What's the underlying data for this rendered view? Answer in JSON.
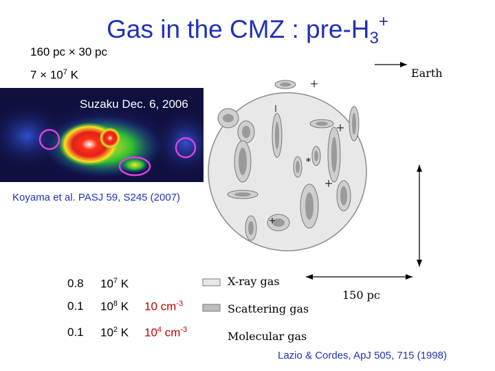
{
  "title": {
    "main": "Gas in the CMZ : pre-H",
    "sub": "3",
    "sup": "+"
  },
  "specs": [
    {
      "text": "160 pc × 30 pc"
    },
    {
      "base": "7 × 10",
      "exp": "7",
      "unit": " K"
    }
  ],
  "xray_image": {
    "label": "Suzaku  Dec. 6, 2006"
  },
  "credits": {
    "left": "Koyama et al. PASJ 59, S245 (2007)",
    "bottom": "Lazio & Cordes, ApJ 505, 715 (1998)"
  },
  "diagram": {
    "earth_label": "Earth",
    "scale_label": "150 pc",
    "legend": [
      "X-ray gas",
      "Scattering gas",
      "Molecular gas"
    ]
  },
  "table": [
    {
      "fraction": "0.8",
      "temp_base": "10",
      "temp_exp": "7",
      "temp_unit": " K",
      "density_base": "",
      "density_exp": "",
      "density_unit": ""
    },
    {
      "fraction": "0.1",
      "temp_base": "10",
      "temp_exp": "8",
      "temp_unit": " K",
      "density_base": "10 cm",
      "density_exp": "-3",
      "density_unit": ""
    },
    {
      "fraction": "0.1",
      "temp_base": "10",
      "temp_exp": "2",
      "temp_unit": " K",
      "density_base": "10",
      "density_exp": "4",
      "density_unit": " cm",
      "density_exp2": "-3"
    }
  ],
  "colors": {
    "title": "#2030b8",
    "highlight": "#c00000",
    "credit": "#2030b8"
  }
}
